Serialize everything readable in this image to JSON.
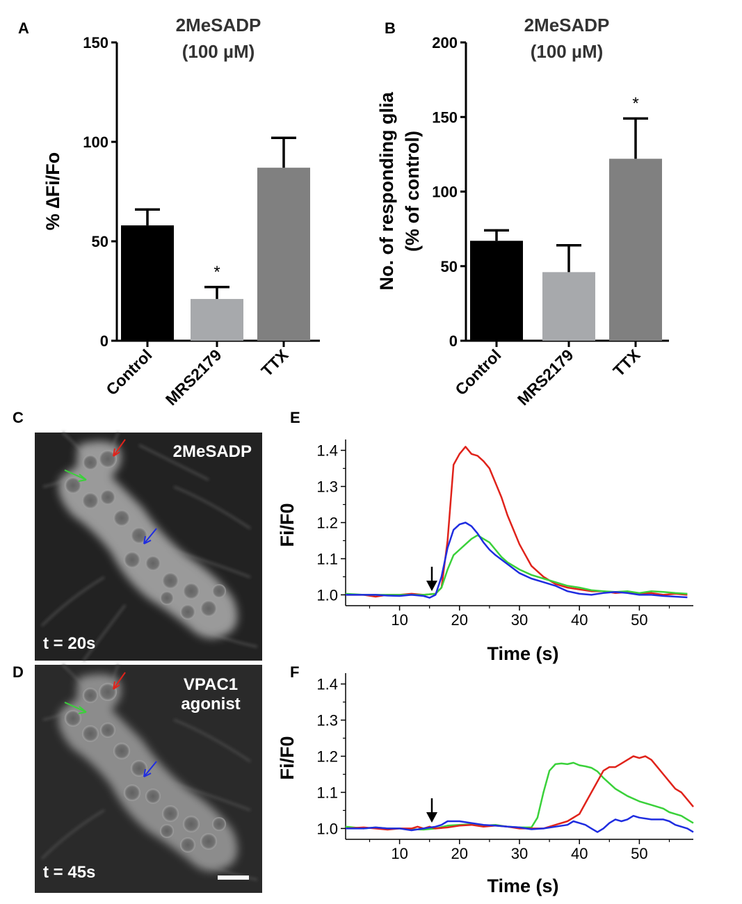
{
  "panels": {
    "A": "A",
    "B": "B",
    "C": "C",
    "D": "D",
    "E": "E",
    "F": "F"
  },
  "chart_data": [
    {
      "panel": "A",
      "type": "bar",
      "title": "2MeSADP",
      "subtitle": "(100 µM)",
      "xlabel": "",
      "ylabel": "% ∆Fi/Fo",
      "categories": [
        "Control",
        "MRS2179",
        "TTX"
      ],
      "values": [
        58,
        21,
        87
      ],
      "errors": [
        8,
        6,
        15
      ],
      "colors": [
        "#000000",
        "#a7a9ac",
        "#808080"
      ],
      "significance": [
        "",
        "*",
        ""
      ],
      "ylim": [
        0,
        150
      ],
      "yticks": [
        0,
        50,
        100,
        150
      ]
    },
    {
      "panel": "B",
      "type": "bar",
      "title": "2MeSADP",
      "subtitle": "(100 µM)",
      "xlabel": "",
      "ylabel": "No. of responding glia",
      "ylabel2": "(% of control)",
      "categories": [
        "Control",
        "MRS2179",
        "TTX"
      ],
      "values": [
        67,
        46,
        122
      ],
      "errors": [
        7,
        18,
        27
      ],
      "colors": [
        "#000000",
        "#a7a9ac",
        "#808080"
      ],
      "significance": [
        "",
        "",
        "*"
      ],
      "ylim": [
        0,
        200
      ],
      "yticks": [
        0,
        50,
        100,
        150,
        200
      ]
    },
    {
      "panel": "E",
      "type": "line",
      "title": "",
      "xlabel": "Time (s)",
      "ylabel": "Fi/F0",
      "xlim": [
        1,
        59
      ],
      "ylim": [
        0.97,
        1.43
      ],
      "xticks": [
        10,
        20,
        30,
        40,
        50
      ],
      "yticks": [
        "1.0",
        "1.1",
        "1.2",
        "1.3",
        "1.4"
      ],
      "stimulus_time": 14.5,
      "series": [
        {
          "name": "red cell",
          "color": "#e0231b",
          "points": [
            [
              1,
              1.0
            ],
            [
              4,
              1.0
            ],
            [
              6,
              0.995
            ],
            [
              8,
              1.0
            ],
            [
              10,
              1.0
            ],
            [
              12,
              1.003
            ],
            [
              14,
              1.0
            ],
            [
              16,
              1.003
            ],
            [
              17,
              1.02
            ],
            [
              18,
              1.15
            ],
            [
              19,
              1.36
            ],
            [
              20,
              1.39
            ],
            [
              21,
              1.41
            ],
            [
              22,
              1.39
            ],
            [
              23,
              1.385
            ],
            [
              24,
              1.37
            ],
            [
              25,
              1.35
            ],
            [
              26,
              1.31
            ],
            [
              27,
              1.27
            ],
            [
              28,
              1.22
            ],
            [
              29,
              1.18
            ],
            [
              30,
              1.14
            ],
            [
              31,
              1.11
            ],
            [
              32,
              1.08
            ],
            [
              34,
              1.05
            ],
            [
              36,
              1.03
            ],
            [
              38,
              1.02
            ],
            [
              40,
              1.015
            ],
            [
              42,
              1.01
            ],
            [
              44,
              1.01
            ],
            [
              46,
              1.005
            ],
            [
              48,
              1.008
            ],
            [
              50,
              1.003
            ],
            [
              52,
              1.005
            ],
            [
              54,
              1.0
            ],
            [
              56,
              1.003
            ],
            [
              58,
              1.0
            ]
          ]
        },
        {
          "name": "green cell",
          "color": "#3ad13a",
          "points": [
            [
              1,
              1.003
            ],
            [
              4,
              1.0
            ],
            [
              6,
              1.0
            ],
            [
              8,
              1.0
            ],
            [
              10,
              1.0
            ],
            [
              12,
              1.0
            ],
            [
              14,
              1.0
            ],
            [
              16,
              1.003
            ],
            [
              17,
              1.02
            ],
            [
              18,
              1.07
            ],
            [
              19,
              1.11
            ],
            [
              20,
              1.125
            ],
            [
              21,
              1.14
            ],
            [
              22,
              1.155
            ],
            [
              23,
              1.165
            ],
            [
              24,
              1.155
            ],
            [
              25,
              1.145
            ],
            [
              26,
              1.125
            ],
            [
              27,
              1.105
            ],
            [
              28,
              1.09
            ],
            [
              30,
              1.07
            ],
            [
              32,
              1.055
            ],
            [
              34,
              1.045
            ],
            [
              36,
              1.035
            ],
            [
              38,
              1.025
            ],
            [
              40,
              1.02
            ],
            [
              42,
              1.013
            ],
            [
              44,
              1.01
            ],
            [
              46,
              1.008
            ],
            [
              48,
              1.01
            ],
            [
              50,
              1.005
            ],
            [
              52,
              1.01
            ],
            [
              54,
              1.008
            ],
            [
              56,
              1.005
            ],
            [
              58,
              1.003
            ]
          ]
        },
        {
          "name": "blue cell",
          "color": "#1f2de0",
          "points": [
            [
              1,
              1.0
            ],
            [
              4,
              1.0
            ],
            [
              6,
              1.0
            ],
            [
              8,
              0.998
            ],
            [
              10,
              0.997
            ],
            [
              12,
              1.0
            ],
            [
              14,
              0.997
            ],
            [
              15,
              0.992
            ],
            [
              16,
              1.0
            ],
            [
              17,
              1.05
            ],
            [
              18,
              1.13
            ],
            [
              19,
              1.18
            ],
            [
              20,
              1.195
            ],
            [
              21,
              1.2
            ],
            [
              22,
              1.19
            ],
            [
              23,
              1.17
            ],
            [
              24,
              1.145
            ],
            [
              25,
              1.125
            ],
            [
              26,
              1.11
            ],
            [
              28,
              1.085
            ],
            [
              30,
              1.06
            ],
            [
              32,
              1.045
            ],
            [
              34,
              1.035
            ],
            [
              36,
              1.025
            ],
            [
              38,
              1.01
            ],
            [
              40,
              1.003
            ],
            [
              42,
              1.0
            ],
            [
              44,
              1.005
            ],
            [
              46,
              1.008
            ],
            [
              48,
              1.005
            ],
            [
              50,
              1.0
            ],
            [
              52,
              1.0
            ],
            [
              54,
              0.997
            ],
            [
              56,
              0.995
            ],
            [
              58,
              0.993
            ]
          ]
        }
      ]
    },
    {
      "panel": "F",
      "type": "line",
      "title": "",
      "xlabel": "Time (s)",
      "ylabel": "Fi/F0",
      "xlim": [
        1,
        59
      ],
      "ylim": [
        0.97,
        1.43
      ],
      "xticks": [
        10,
        20,
        30,
        40,
        50
      ],
      "yticks": [
        "1.0",
        "1.1",
        "1.2",
        "1.3",
        "1.4"
      ],
      "stimulus_time": 14.5,
      "series": [
        {
          "name": "green cell",
          "color": "#3ad13a",
          "points": [
            [
              1,
              1.005
            ],
            [
              4,
              1.0
            ],
            [
              6,
              1.003
            ],
            [
              8,
              1.0
            ],
            [
              10,
              1.0
            ],
            [
              12,
              0.998
            ],
            [
              14,
              0.997
            ],
            [
              16,
              1.0
            ],
            [
              18,
              1.008
            ],
            [
              20,
              1.01
            ],
            [
              22,
              1.012
            ],
            [
              24,
              1.008
            ],
            [
              26,
              1.01
            ],
            [
              28,
              1.005
            ],
            [
              30,
              1.003
            ],
            [
              32,
              1.003
            ],
            [
              33,
              1.03
            ],
            [
              34,
              1.1
            ],
            [
              35,
              1.16
            ],
            [
              36,
              1.178
            ],
            [
              37,
              1.18
            ],
            [
              38,
              1.178
            ],
            [
              39,
              1.182
            ],
            [
              40,
              1.175
            ],
            [
              41,
              1.172
            ],
            [
              42,
              1.168
            ],
            [
              43,
              1.158
            ],
            [
              44,
              1.14
            ],
            [
              46,
              1.11
            ],
            [
              48,
              1.09
            ],
            [
              50,
              1.075
            ],
            [
              52,
              1.065
            ],
            [
              54,
              1.055
            ],
            [
              55,
              1.045
            ],
            [
              56,
              1.04
            ],
            [
              57,
              1.035
            ],
            [
              58,
              1.025
            ],
            [
              59,
              1.015
            ]
          ]
        },
        {
          "name": "red cell",
          "color": "#e0231b",
          "points": [
            [
              1,
              1.0
            ],
            [
              4,
              1.003
            ],
            [
              6,
              1.0
            ],
            [
              8,
              0.997
            ],
            [
              10,
              1.0
            ],
            [
              12,
              1.0
            ],
            [
              13,
              1.005
            ],
            [
              14,
              1.0
            ],
            [
              15,
              1.005
            ],
            [
              16,
              1.0
            ],
            [
              18,
              1.003
            ],
            [
              20,
              1.008
            ],
            [
              22,
              1.01
            ],
            [
              24,
              1.005
            ],
            [
              26,
              1.008
            ],
            [
              28,
              1.005
            ],
            [
              30,
              1.0
            ],
            [
              32,
              1.0
            ],
            [
              34,
              1.0
            ],
            [
              36,
              1.01
            ],
            [
              38,
              1.02
            ],
            [
              40,
              1.04
            ],
            [
              41,
              1.07
            ],
            [
              42,
              1.1
            ],
            [
              43,
              1.13
            ],
            [
              44,
              1.16
            ],
            [
              45,
              1.17
            ],
            [
              46,
              1.17
            ],
            [
              47,
              1.18
            ],
            [
              48,
              1.19
            ],
            [
              49,
              1.2
            ],
            [
              50,
              1.195
            ],
            [
              51,
              1.2
            ],
            [
              52,
              1.19
            ],
            [
              53,
              1.17
            ],
            [
              54,
              1.15
            ],
            [
              55,
              1.13
            ],
            [
              56,
              1.11
            ],
            [
              57,
              1.1
            ],
            [
              58,
              1.08
            ],
            [
              59,
              1.06
            ]
          ]
        },
        {
          "name": "blue cell",
          "color": "#1f2de0",
          "points": [
            [
              1,
              1.0
            ],
            [
              4,
              1.0
            ],
            [
              6,
              1.003
            ],
            [
              8,
              1.0
            ],
            [
              10,
              1.0
            ],
            [
              12,
              0.995
            ],
            [
              14,
              1.0
            ],
            [
              16,
              1.005
            ],
            [
              17,
              1.01
            ],
            [
              18,
              1.02
            ],
            [
              20,
              1.02
            ],
            [
              22,
              1.015
            ],
            [
              24,
              1.01
            ],
            [
              26,
              1.008
            ],
            [
              28,
              1.005
            ],
            [
              30,
              1.003
            ],
            [
              32,
              0.998
            ],
            [
              34,
              1.0
            ],
            [
              36,
              1.005
            ],
            [
              38,
              1.01
            ],
            [
              39,
              1.02
            ],
            [
              40,
              1.015
            ],
            [
              41,
              1.01
            ],
            [
              42,
              1.0
            ],
            [
              43,
              0.99
            ],
            [
              44,
              1.0
            ],
            [
              45,
              1.015
            ],
            [
              46,
              1.025
            ],
            [
              47,
              1.02
            ],
            [
              48,
              1.025
            ],
            [
              49,
              1.035
            ],
            [
              50,
              1.03
            ],
            [
              52,
              1.025
            ],
            [
              54,
              1.025
            ],
            [
              55,
              1.02
            ],
            [
              56,
              1.01
            ],
            [
              57,
              1.005
            ],
            [
              58,
              1.0
            ],
            [
              59,
              0.99
            ]
          ]
        }
      ]
    }
  ],
  "images": {
    "C": {
      "label": "2MeSADP",
      "time": "t = 20s"
    },
    "D": {
      "label_line1": "VPAC1",
      "label_line2": "agonist",
      "time": "t = 45s"
    }
  }
}
